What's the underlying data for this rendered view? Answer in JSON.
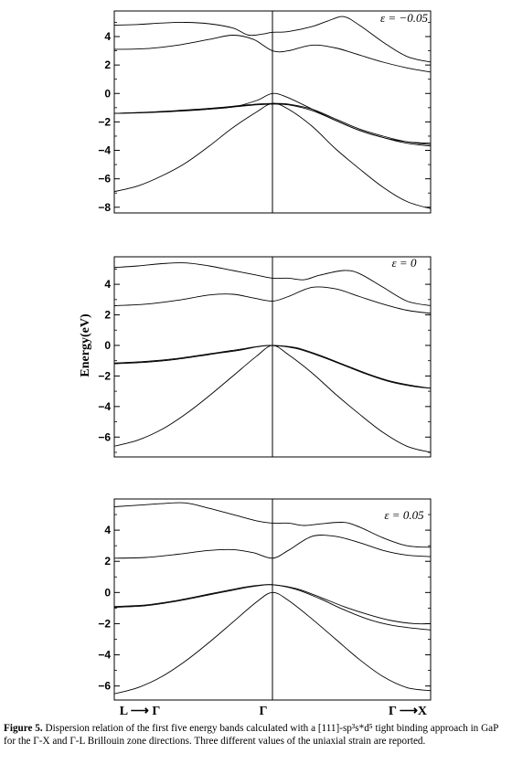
{
  "chart_data": [
    {
      "type": "line",
      "annotation": "ε = −0.05",
      "ylabel": "",
      "ylim": [
        -8.4,
        5.8
      ],
      "yticks": [
        "4",
        "2",
        "0",
        "−2",
        "−4",
        "−6",
        "−8"
      ],
      "ytick_values": [
        4,
        2,
        0,
        -2,
        -4,
        -6,
        -8
      ],
      "xlim": [
        -1,
        1
      ],
      "grid": false,
      "series": [
        {
          "x": [
            -1,
            -0.85,
            -0.7,
            -0.55,
            -0.4,
            -0.25,
            -0.1,
            0,
            0.1,
            0.25,
            0.4,
            0.55,
            0.7,
            0.85,
            1
          ],
          "y": [
            -6.9,
            -6.5,
            -5.8,
            -4.9,
            -3.7,
            -2.4,
            -1.3,
            -0.7,
            -1.1,
            -2.3,
            -3.9,
            -5.3,
            -6.6,
            -7.6,
            -8.1
          ]
        },
        {
          "x": [
            -1,
            -0.8,
            -0.6,
            -0.4,
            -0.2,
            -0.1,
            0,
            0.1,
            0.25,
            0.4,
            0.55,
            0.7,
            0.85,
            1
          ],
          "y": [
            -1.4,
            -1.35,
            -1.25,
            -1.1,
            -0.9,
            -0.8,
            -0.75,
            -0.8,
            -1.2,
            -1.9,
            -2.6,
            -3.1,
            -3.5,
            -3.7
          ]
        },
        {
          "x": [
            -1,
            -0.8,
            -0.6,
            -0.4,
            -0.2,
            -0.1,
            0,
            0.1,
            0.25,
            0.4,
            0.55,
            0.7,
            0.85,
            1
          ],
          "y": [
            -1.4,
            -1.32,
            -1.2,
            -1.05,
            -0.85,
            -0.75,
            -0.7,
            -0.75,
            -1.1,
            -1.8,
            -2.5,
            -3.0,
            -3.4,
            -3.6
          ]
        },
        {
          "x": [
            -1,
            -0.85,
            -0.7,
            -0.55,
            -0.4,
            -0.25,
            -0.1,
            0,
            0.1,
            0.25,
            0.4,
            0.55,
            0.7,
            0.85,
            1
          ],
          "y": [
            -1.4,
            -1.35,
            -1.28,
            -1.2,
            -1.1,
            -0.95,
            -0.5,
            0,
            -0.3,
            -1.1,
            -1.9,
            -2.6,
            -3.1,
            -3.4,
            -3.5
          ]
        },
        {
          "x": [
            -1,
            -0.8,
            -0.6,
            -0.4,
            -0.25,
            -0.12,
            0,
            0.1,
            0.25,
            0.4,
            0.55,
            0.7,
            0.85,
            1
          ],
          "y": [
            3.1,
            3.15,
            3.4,
            3.8,
            4.1,
            3.8,
            3.0,
            3.0,
            3.4,
            3.2,
            2.7,
            2.2,
            1.8,
            1.5
          ]
        },
        {
          "x": [
            -1,
            -0.85,
            -0.7,
            -0.55,
            -0.4,
            -0.25,
            -0.15,
            -0.05,
            0,
            0.1,
            0.25,
            0.35,
            0.45,
            0.55,
            0.7,
            0.85,
            1
          ],
          "y": [
            4.8,
            4.85,
            4.95,
            5.0,
            4.9,
            4.6,
            4.1,
            4.2,
            4.3,
            4.35,
            4.7,
            5.1,
            5.4,
            4.8,
            3.6,
            2.6,
            2.2
          ]
        }
      ]
    },
    {
      "type": "line",
      "annotation": "ε = 0",
      "ylabel": "Energy(eV)",
      "ylim": [
        -7.3,
        5.8
      ],
      "yticks": [
        "4",
        "2",
        "0",
        "−2",
        "−4",
        "−6"
      ],
      "ytick_values": [
        4,
        2,
        0,
        -2,
        -4,
        -6
      ],
      "xlim": [
        -1,
        1
      ],
      "grid": false,
      "series": [
        {
          "x": [
            -1,
            -0.85,
            -0.7,
            -0.55,
            -0.4,
            -0.25,
            -0.1,
            0,
            0.1,
            0.25,
            0.4,
            0.55,
            0.7,
            0.85,
            1
          ],
          "y": [
            -6.6,
            -6.2,
            -5.5,
            -4.5,
            -3.3,
            -2.0,
            -0.7,
            0,
            -0.6,
            -1.8,
            -3.2,
            -4.5,
            -5.7,
            -6.6,
            -7.0
          ]
        },
        {
          "x": [
            -1,
            -0.8,
            -0.6,
            -0.4,
            -0.2,
            -0.1,
            0,
            0.15,
            0.3,
            0.45,
            0.6,
            0.75,
            0.9,
            1
          ],
          "y": [
            -1.2,
            -1.1,
            -0.9,
            -0.6,
            -0.3,
            -0.1,
            0,
            -0.2,
            -0.7,
            -1.3,
            -1.9,
            -2.4,
            -2.7,
            -2.8
          ]
        },
        {
          "x": [
            -1,
            -0.8,
            -0.6,
            -0.4,
            -0.2,
            -0.1,
            0,
            0.15,
            0.3,
            0.45,
            0.6,
            0.75,
            0.9,
            1
          ],
          "y": [
            -1.15,
            -1.05,
            -0.85,
            -0.55,
            -0.25,
            -0.08,
            0,
            -0.15,
            -0.65,
            -1.25,
            -1.85,
            -2.35,
            -2.65,
            -2.8
          ]
        },
        {
          "x": [
            -1,
            -0.8,
            -0.6,
            -0.4,
            -0.25,
            -0.12,
            0,
            0.1,
            0.25,
            0.4,
            0.55,
            0.7,
            0.85,
            1
          ],
          "y": [
            2.6,
            2.7,
            2.95,
            3.3,
            3.35,
            3.1,
            2.9,
            3.2,
            3.8,
            3.7,
            3.2,
            2.7,
            2.3,
            2.1
          ]
        },
        {
          "x": [
            -1,
            -0.85,
            -0.7,
            -0.55,
            -0.4,
            -0.25,
            -0.1,
            0,
            0.1,
            0.2,
            0.3,
            0.45,
            0.55,
            0.7,
            0.85,
            1
          ],
          "y": [
            5.1,
            5.2,
            5.35,
            5.4,
            5.2,
            4.9,
            4.6,
            4.4,
            4.4,
            4.3,
            4.6,
            4.9,
            4.7,
            3.8,
            2.9,
            2.6
          ]
        }
      ]
    },
    {
      "type": "line",
      "annotation": "ε = 0.05",
      "ylabel": "",
      "ylim": [
        -6.9,
        6.0
      ],
      "yticks": [
        "4",
        "2",
        "0",
        "−2",
        "−4",
        "−6"
      ],
      "ytick_values": [
        4,
        2,
        0,
        -2,
        -4,
        -6
      ],
      "xlim": [
        -1,
        1
      ],
      "xticks": [
        "L ⟶ Γ",
        "Γ",
        "Γ ⟶X"
      ],
      "grid": false,
      "series": [
        {
          "x": [
            -1,
            -0.85,
            -0.7,
            -0.55,
            -0.4,
            -0.25,
            -0.1,
            0,
            0.1,
            0.25,
            0.4,
            0.55,
            0.7,
            0.85,
            1
          ],
          "y": [
            -6.5,
            -6.1,
            -5.4,
            -4.4,
            -3.2,
            -1.9,
            -0.6,
            0,
            -0.5,
            -1.7,
            -3.0,
            -4.3,
            -5.4,
            -6.1,
            -6.3
          ]
        },
        {
          "x": [
            -1,
            -0.8,
            -0.6,
            -0.4,
            -0.2,
            -0.1,
            0,
            0.15,
            0.3,
            0.45,
            0.6,
            0.75,
            0.9,
            1
          ],
          "y": [
            -0.9,
            -0.8,
            -0.5,
            -0.1,
            0.3,
            0.45,
            0.5,
            0.25,
            -0.3,
            -0.9,
            -1.4,
            -1.8,
            -2.0,
            -2.0
          ]
        },
        {
          "x": [
            -1,
            -0.8,
            -0.6,
            -0.4,
            -0.2,
            -0.1,
            0,
            0.15,
            0.3,
            0.45,
            0.6,
            0.75,
            0.9,
            1
          ],
          "y": [
            -0.95,
            -0.85,
            -0.55,
            -0.15,
            0.25,
            0.42,
            0.5,
            0.2,
            -0.4,
            -1.1,
            -1.7,
            -2.1,
            -2.3,
            -2.4
          ]
        },
        {
          "x": [
            -1,
            -0.8,
            -0.6,
            -0.4,
            -0.25,
            -0.12,
            0,
            0.1,
            0.25,
            0.4,
            0.55,
            0.7,
            0.85,
            1
          ],
          "y": [
            2.2,
            2.25,
            2.45,
            2.7,
            2.75,
            2.55,
            2.2,
            2.7,
            3.6,
            3.6,
            3.2,
            2.7,
            2.4,
            2.3
          ]
        },
        {
          "x": [
            -1,
            -0.85,
            -0.7,
            -0.55,
            -0.4,
            -0.25,
            -0.1,
            0,
            0.1,
            0.2,
            0.3,
            0.45,
            0.55,
            0.7,
            0.85,
            1
          ],
          "y": [
            5.5,
            5.6,
            5.7,
            5.75,
            5.4,
            5.0,
            4.6,
            4.45,
            4.45,
            4.3,
            4.4,
            4.5,
            4.2,
            3.5,
            3.0,
            2.9
          ]
        }
      ]
    }
  ],
  "caption": {
    "label": "Figure 5.",
    "text": " Dispersion relation of the first five energy bands calculated with a [111]-sp³s*d⁵ tight binding approach in GaP for the Γ-X and Γ-L Brillouin zone directions. Three different values of the    uniaxial strain are reported."
  }
}
